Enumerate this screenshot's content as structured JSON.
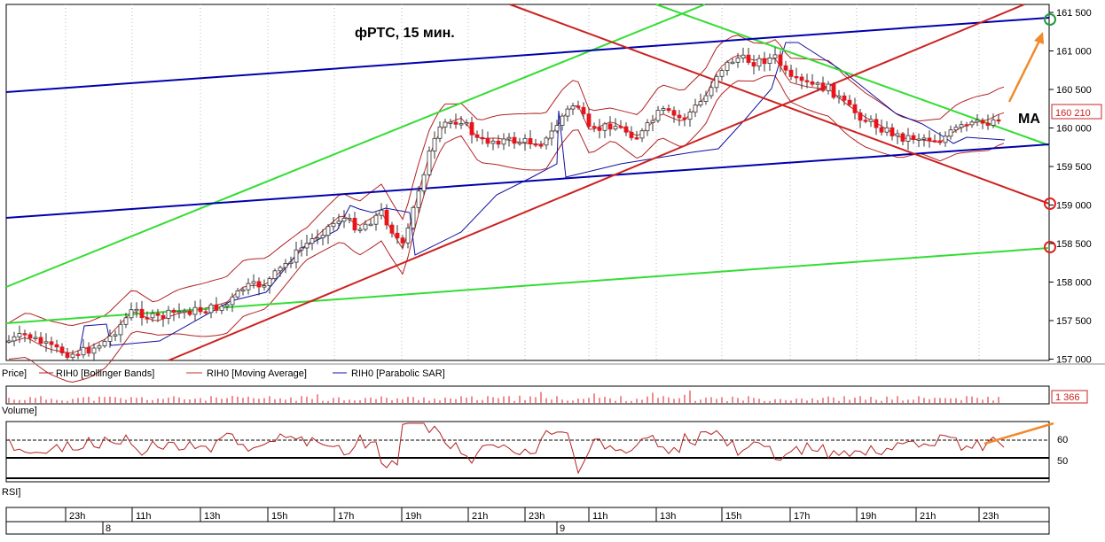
{
  "chart_data": {
    "type": "line",
    "title": "фРТС,  15 мин.",
    "annotation_ma": "MA",
    "price_axis": {
      "ticks": [
        "161 500",
        "161 000",
        "160 500",
        "160 000",
        "159 500",
        "159 000",
        "158 500",
        "158 000",
        "157 500",
        "157 000"
      ],
      "last_price": "160 210"
    },
    "legend": {
      "price": "Price]",
      "bollinger": "RIH0 [Bollinger Bands]",
      "ma": "RIH0 [Moving Average]",
      "sar": "RIH0 [Parabolic SAR]"
    },
    "volume": {
      "label": "Volume]",
      "last": "1 366"
    },
    "rsi": {
      "label": "RSI]",
      "ticks": [
        "60",
        "50"
      ]
    },
    "time_axis": {
      "hours": [
        "23h",
        "11h",
        "13h",
        "15h",
        "17h",
        "19h",
        "21h",
        "23h",
        "11h",
        "13h",
        "15h",
        "17h",
        "19h",
        "21h",
        "23h"
      ],
      "days": [
        "8",
        "9"
      ]
    },
    "colors": {
      "bull": "#ffffff",
      "bear": "#e8141c",
      "bollinger": "#b22222",
      "ma": "#c0302a",
      "sar": "#1010a0",
      "trend_green": "#33dd33",
      "trend_blue": "#0000aa",
      "trend_red": "#cc2222",
      "arrow": "#f08a2a"
    }
  }
}
